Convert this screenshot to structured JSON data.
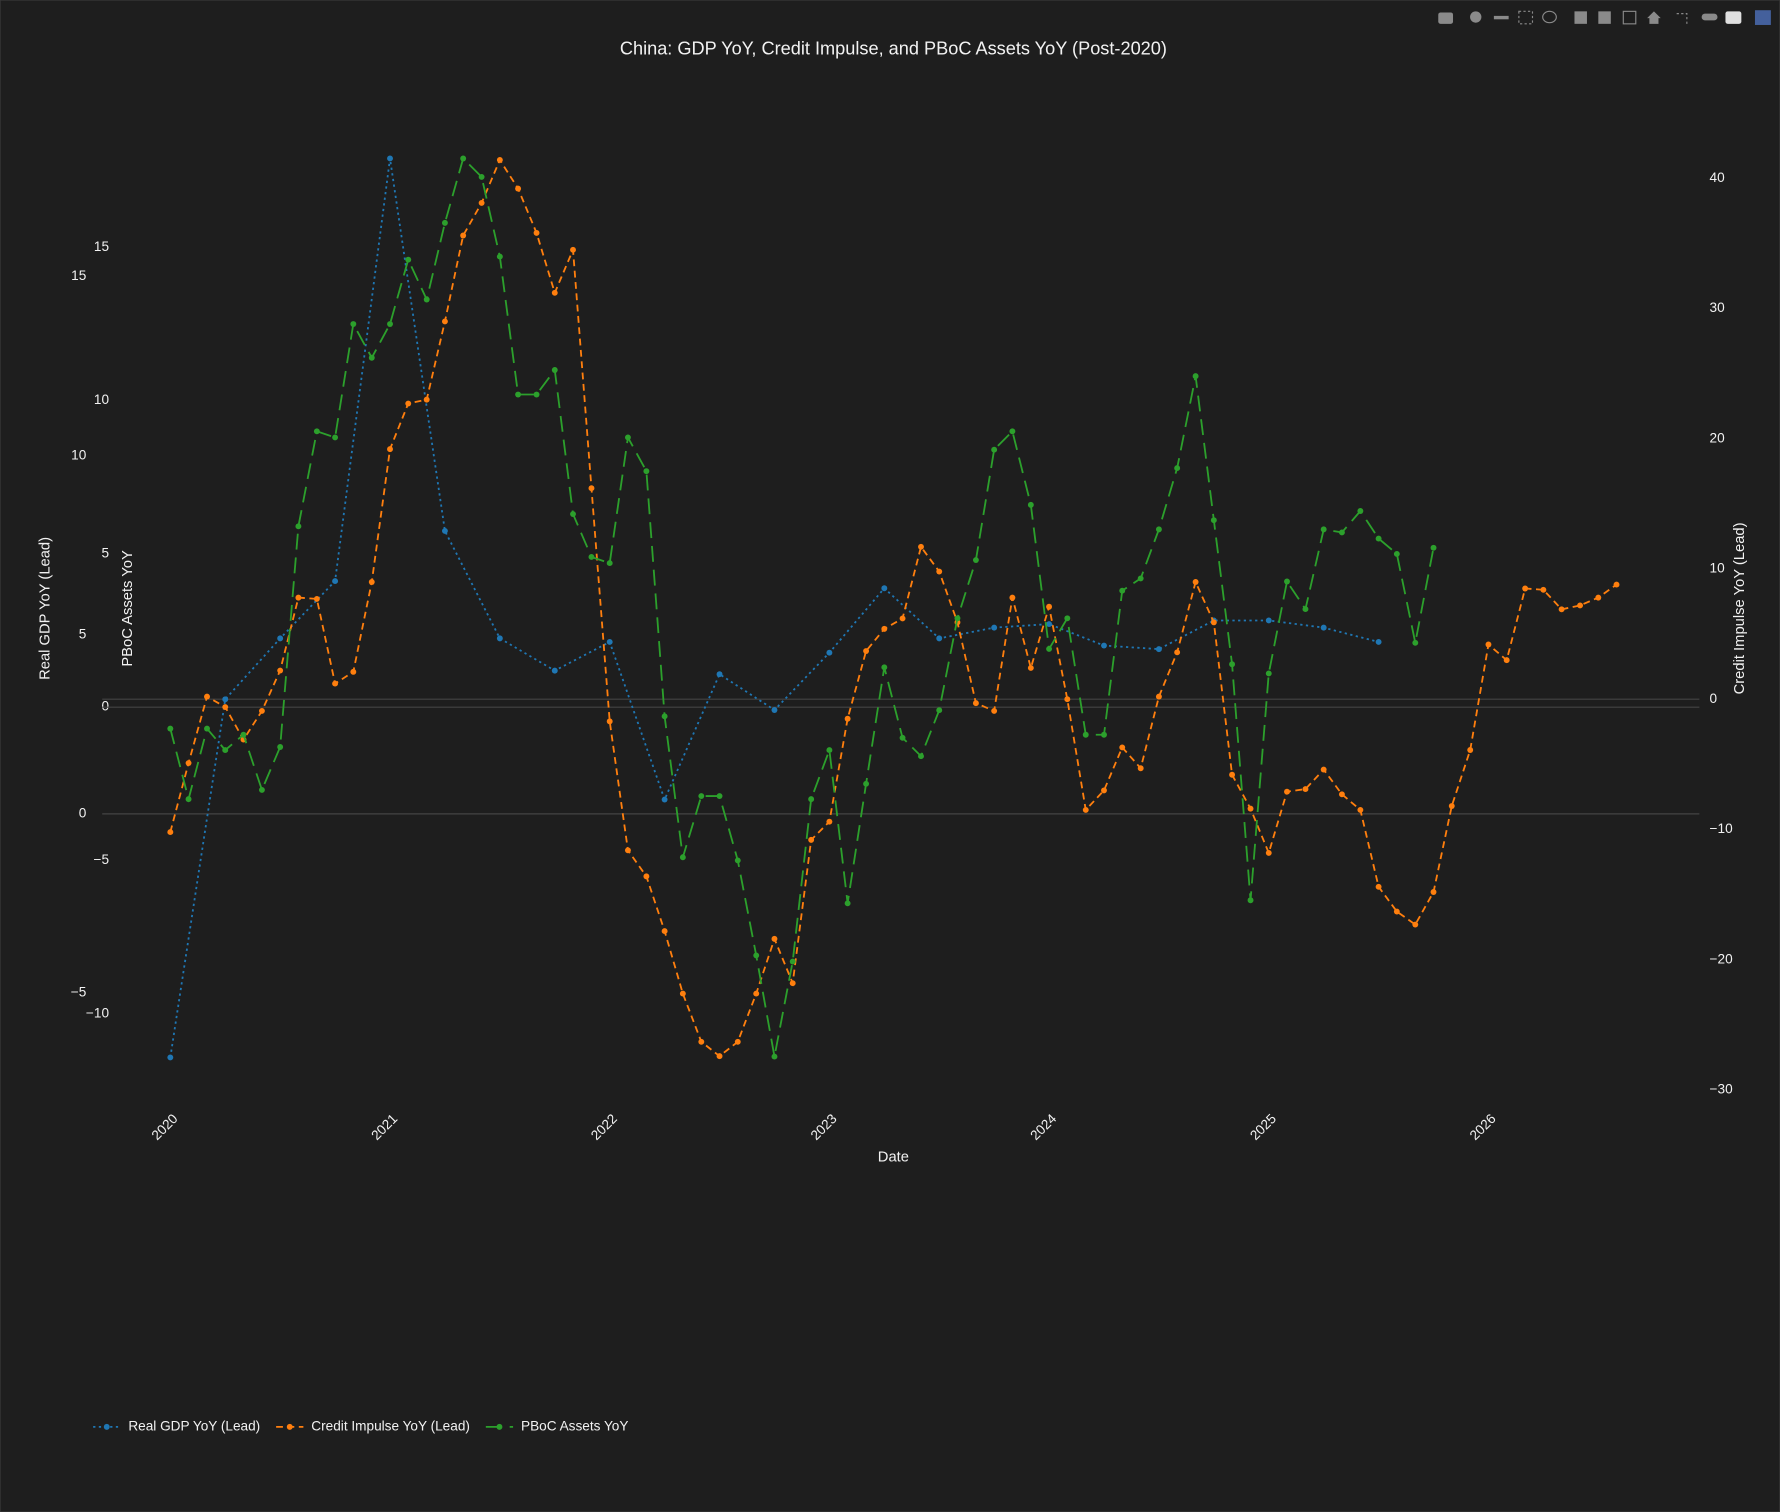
{
  "chart_data": {
    "type": "line",
    "title": "China: GDP YoY, Credit Impulse, and PBoC Assets YoY (Post-2020)",
    "xlabel": "Date",
    "ylabel": "Real GDP YoY (Lead)",
    "y2label": "Credit Impulse YoY (Lead)",
    "y3label": "PBoC Assets YoY",
    "xlim": [
      2019.69,
      2026.96
    ],
    "xticks": [
      2020,
      2021,
      2022,
      2023,
      2024,
      2025,
      2026
    ],
    "ylim": [
      -8,
      19
    ],
    "yticks": [
      {
        "value": -5,
        "label": "−5"
      },
      0,
      5,
      10,
      15
    ],
    "y2lim": [
      -30.8,
      43.44
    ],
    "y2ticks": [
      {
        "value": -30,
        "label": "−30"
      },
      {
        "value": -20,
        "label": "−20"
      },
      {
        "value": -10,
        "label": "−10"
      },
      0,
      10,
      20,
      30,
      40
    ],
    "y3lim": [
      -12.83,
      18.72
    ],
    "y3ticks": [
      {
        "value": -10,
        "label": "−10"
      },
      {
        "value": -5,
        "label": "−5"
      },
      0,
      5,
      10,
      15
    ],
    "grid": false,
    "legend": "bottom-left",
    "series": [
      {
        "name": "Real GDP YoY (Lead)",
        "color": "#1f77b4",
        "dash": "dot",
        "axis": "y",
        "x": [
          2020,
          2020.25,
          2020.5,
          2020.75,
          2021,
          2021.25,
          2021.5,
          2021.75,
          2022,
          2022.25,
          2022.5,
          2022.75,
          2023,
          2023.25,
          2023.5,
          2023.75,
          2024,
          2024.25,
          2024.5,
          2024.75,
          2025,
          2025.25,
          2025.5
        ],
        "values": [
          -6.8,
          3.2,
          4.9,
          6.5,
          18.3,
          7.9,
          4.9,
          4.0,
          4.8,
          0.4,
          3.9,
          2.9,
          4.5,
          6.3,
          4.9,
          5.2,
          5.3,
          4.7,
          4.6,
          5.4,
          5.4,
          5.2,
          4.8
        ]
      },
      {
        "name": "Credit Impulse YoY (Lead)",
        "color": "#ff7f0e",
        "dash": "dash",
        "axis": "y2",
        "x": [
          2020,
          2020.083,
          2020.167,
          2020.25,
          2020.333,
          2020.417,
          2020.5,
          2020.583,
          2020.667,
          2020.75,
          2020.833,
          2020.917,
          2021,
          2021.083,
          2021.167,
          2021.25,
          2021.333,
          2021.417,
          2021.5,
          2021.583,
          2021.667,
          2021.75,
          2021.833,
          2021.917,
          2022,
          2022.083,
          2022.167,
          2022.25,
          2022.333,
          2022.417,
          2022.5,
          2022.583,
          2022.667,
          2022.75,
          2022.833,
          2022.917,
          2023,
          2023.083,
          2023.167,
          2023.25,
          2023.333,
          2023.417,
          2023.5,
          2023.583,
          2023.667,
          2023.75,
          2023.833,
          2023.917,
          2024,
          2024.083,
          2024.167,
          2024.25,
          2024.333,
          2024.417,
          2024.5,
          2024.583,
          2024.667,
          2024.75,
          2024.833,
          2024.917,
          2025,
          2025.083,
          2025.167,
          2025.25,
          2025.333,
          2025.417,
          2025.5,
          2025.583,
          2025.667,
          2025.75,
          2025.833,
          2025.917,
          2026,
          2026.083,
          2026.167,
          2026.25,
          2026.333,
          2026.417,
          2026.5,
          2026.583
        ],
        "values": [
          -10.2,
          -4.9,
          0.2,
          -0.6,
          -3.1,
          -0.9,
          2.2,
          7.8,
          7.7,
          1.2,
          2.1,
          9.0,
          19.2,
          22.7,
          23.0,
          29.0,
          35.6,
          38.1,
          41.4,
          39.2,
          35.8,
          31.2,
          34.5,
          16.2,
          -1.7,
          -11.6,
          -13.6,
          -17.8,
          -22.6,
          -26.3,
          -27.4,
          -26.3,
          -22.6,
          -18.4,
          -21.8,
          -10.8,
          -9.4,
          -1.5,
          3.7,
          5.4,
          6.2,
          11.7,
          9.8,
          5.9,
          -0.3,
          -0.9,
          7.8,
          2.4,
          7.1,
          0.0,
          -8.5,
          -7.0,
          -3.7,
          -5.3,
          0.2,
          3.6,
          9.0,
          5.9,
          -5.8,
          -8.4,
          -11.8,
          -7.1,
          -6.9,
          -5.4,
          -7.3,
          -8.5,
          -14.4,
          -16.3,
          -17.3,
          -14.8,
          -8.2,
          -3.9,
          4.2,
          3.0,
          8.5,
          8.4,
          6.9,
          7.2,
          7.8,
          8.8
        ]
      },
      {
        "name": "PBoC Assets YoY",
        "color": "#2ca02c",
        "dash": "longdash",
        "axis": "y3",
        "x": [
          2020,
          2020.083,
          2020.167,
          2020.25,
          2020.333,
          2020.417,
          2020.5,
          2020.583,
          2020.667,
          2020.75,
          2020.833,
          2020.917,
          2021,
          2021.083,
          2021.167,
          2021.25,
          2021.333,
          2021.417,
          2021.5,
          2021.583,
          2021.667,
          2021.75,
          2021.833,
          2021.917,
          2022,
          2022.083,
          2022.167,
          2022.25,
          2022.333,
          2022.417,
          2022.5,
          2022.583,
          2022.667,
          2022.75,
          2022.833,
          2022.917,
          2023,
          2023.083,
          2023.167,
          2023.25,
          2023.333,
          2023.417,
          2023.5,
          2023.583,
          2023.667,
          2023.75,
          2023.833,
          2023.917,
          2024,
          2024.083,
          2024.167,
          2024.25,
          2024.333,
          2024.417,
          2024.5,
          2024.583,
          2024.667,
          2024.75,
          2024.833,
          2024.917,
          2025,
          2025.083,
          2025.167,
          2025.25,
          2025.333,
          2025.417,
          2025.5,
          2025.583,
          2025.667,
          2025.75
        ],
        "values": [
          -0.7,
          -3.0,
          -0.7,
          -1.4,
          -0.9,
          -2.7,
          -1.3,
          5.9,
          9.0,
          8.8,
          12.5,
          11.4,
          12.5,
          14.6,
          13.3,
          15.8,
          17.9,
          17.3,
          14.7,
          10.2,
          10.2,
          11.0,
          6.3,
          4.9,
          4.7,
          8.8,
          7.7,
          -0.3,
          -4.9,
          -2.9,
          -2.9,
          -5.0,
          -8.1,
          -11.4,
          -8.3,
          -3.0,
          -1.4,
          -6.4,
          -2.5,
          1.3,
          -1.0,
          -1.6,
          -0.1,
          2.9,
          4.8,
          8.4,
          9.0,
          6.6,
          1.9,
          2.9,
          -0.9,
          -0.9,
          3.8,
          4.2,
          5.8,
          7.8,
          10.8,
          6.1,
          1.4,
          -6.3,
          1.1,
          4.1,
          3.2,
          5.8,
          5.7,
          6.4,
          5.5,
          5.0,
          2.1,
          5.2
        ]
      }
    ]
  }
}
